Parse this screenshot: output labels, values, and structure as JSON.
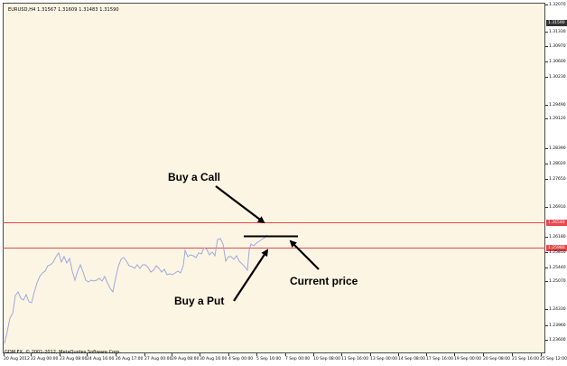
{
  "header": {
    "symbol_info": "EURUSD,H4  1.31567 1.31609 1.31483 1.31590"
  },
  "footer": {
    "copyright": "GDM FX, © 2001-2012, MetaQuotes Software Corp."
  },
  "price_scale": {
    "labels": [
      "1.32070",
      "1.31330",
      "1.30970",
      "1.30600",
      "1.30230",
      "1.29490",
      "1.29120",
      "1.28390",
      "1.28020",
      "1.27650",
      "1.26910",
      "1.26180",
      "1.25810",
      "1.25440",
      "1.25070",
      "1.24330",
      "1.23960",
      "1.23600"
    ],
    "current_label": "1.31590"
  },
  "levels": {
    "upper": {
      "label": "1.26540",
      "color": "#E8474B"
    },
    "lower": {
      "label": "1.25980",
      "color": "#E8474B"
    }
  },
  "time_axis": {
    "labels": [
      "20 Aug 2012",
      "22 Aug 00:00",
      "23 Aug 08:00",
      "24 Aug 16:00",
      "26 Aug 17:00",
      "27 Aug 00:00",
      "29 Aug 08:00",
      "30 Aug 16:00",
      "4 Sep 00:00",
      "5 Sep 16:00",
      "7 Sep 00:00",
      "10 Sep 08:00",
      "11 Sep 16:00",
      "13 Sep 00:00",
      "14 Sep 08:00",
      "17 Sep 16:00",
      "19 Sep 00:00",
      "20 Sep 08:00",
      "21 Sep 16:00",
      "25 Sep 12:00"
    ]
  },
  "annotations": {
    "call": "Buy a Call",
    "put": "Buy a Put",
    "current": "Current price"
  },
  "colors": {
    "price_line": "#9DA8E0",
    "background": "#FDF5E3",
    "level": "#E8474B",
    "current_flag": "#333333",
    "annotation": "#000000"
  }
}
